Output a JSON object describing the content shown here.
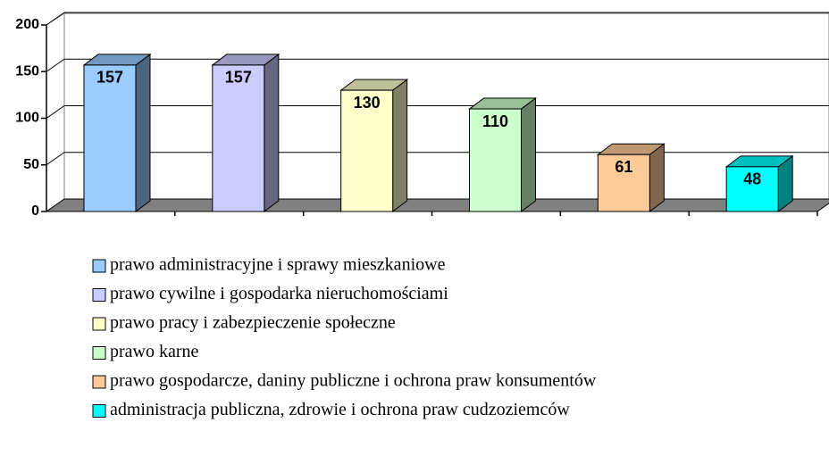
{
  "chart_data": {
    "type": "bar",
    "ylim": [
      0,
      200
    ],
    "yticks": [
      0,
      50,
      100,
      150,
      200
    ],
    "grid": true,
    "legend": "bottom",
    "series": [
      {
        "name": "prawo administracyjne i sprawy mieszkaniowe",
        "color": "#99ccff",
        "values": [
          157
        ]
      },
      {
        "name": "prawo cywilne i gospodarka nieruchomościami",
        "color": "#ccccff",
        "values": [
          157
        ]
      },
      {
        "name": "prawo pracy i zabezpieczenie społeczne",
        "color": "#ffffcc",
        "values": [
          130
        ]
      },
      {
        "name": "prawo karne",
        "color": "#ccffcc",
        "values": [
          110
        ]
      },
      {
        "name": "prawo gospodarcze, daniny publiczne i ochrona praw konsumentów",
        "color": "#ffcc99",
        "values": [
          61
        ]
      },
      {
        "name": "administracja publiczna, zdrowie i ochrona praw cudzoziemców",
        "color": "#00ffff",
        "values": [
          48
        ]
      }
    ]
  }
}
